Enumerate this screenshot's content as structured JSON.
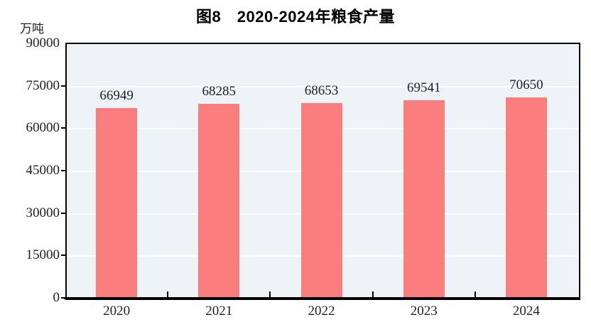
{
  "chart_data": {
    "type": "bar",
    "title": "图8　2020-2024年粮食产量",
    "ylabel": "万吨",
    "xlabel": "",
    "categories": [
      "2020",
      "2021",
      "2022",
      "2023",
      "2024"
    ],
    "values": [
      66949,
      68285,
      68653,
      69541,
      70650
    ],
    "bar_labels": [
      "66949",
      "68285",
      "68653",
      "69541",
      "70650"
    ],
    "ylim": [
      0,
      90000
    ],
    "yticks": [
      0,
      15000,
      30000,
      45000,
      60000,
      75000,
      90000
    ],
    "grid": true,
    "legend": "none",
    "colors": {
      "bar": "#FB7E7E",
      "plot_background": "#EDF3F7",
      "gridline": "#FFFFFF",
      "axis": "#000000",
      "text": "#1E1E28"
    }
  }
}
